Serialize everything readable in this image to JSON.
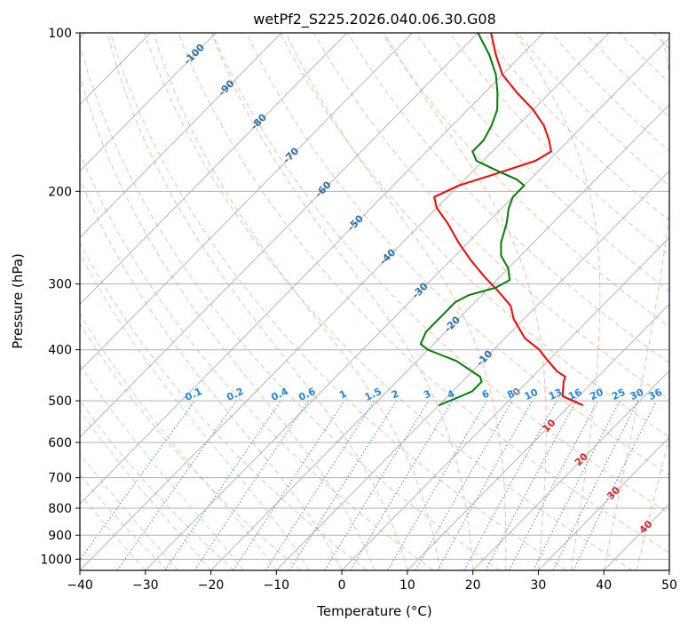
{
  "chart_data": {
    "type": "line",
    "title": "wetPf2_S225.2026.040.06.30.G08",
    "xlabel": "Temperature (°C)",
    "ylabel": "Pressure (hPa)",
    "xlim": [
      -40,
      50
    ],
    "ylim": [
      1050,
      100
    ],
    "x_ticks": [
      -40,
      -30,
      -20,
      -10,
      0,
      10,
      20,
      30,
      40,
      50
    ],
    "x_tick_labels": [
      "−40",
      "−30",
      "−20",
      "−10",
      "0",
      "10",
      "20",
      "30",
      "40",
      "50"
    ],
    "y_ticks": [
      100,
      200,
      300,
      400,
      500,
      600,
      700,
      800,
      900,
      1000
    ],
    "y_tick_labels": [
      "100",
      "200",
      "300",
      "400",
      "500",
      "600",
      "700",
      "800",
      "900",
      "1000"
    ],
    "skew_factor": 35,
    "dry_adiabat_color": "#d9b99b",
    "moist_adiabat_color": "#f4a582",
    "mixing_ratio_color": "#4a90d9",
    "isotherm_color": "#888888",
    "grid_color": "#b0b0b0",
    "isotherm_labels": {
      "values": [
        -100,
        -90,
        -80,
        -70,
        -60,
        -50,
        -40,
        -30,
        -20,
        -10,
        0,
        10,
        20,
        30,
        40
      ],
      "texts": [
        "-100",
        "-90",
        "-80",
        "-70",
        "-60",
        "-50",
        "-40",
        "-30",
        "-20",
        "-10",
        "0",
        "10",
        "20",
        "30",
        "40"
      ],
      "cold_color": "#2b6ea8",
      "zero_color": "#808080",
      "warm_color": "#d62728"
    },
    "mixing_ratio_labels": {
      "values": [
        0.1,
        0.2,
        0.4,
        0.6,
        1,
        1.5,
        2,
        3,
        4,
        6,
        8,
        10,
        13,
        16,
        20,
        25,
        30,
        36
      ],
      "texts": [
        "0.1",
        "0.2",
        "0.4",
        "0.6",
        "1",
        "1.5",
        "2",
        "3",
        "4",
        "6",
        "8",
        "10",
        "13",
        "16",
        "20",
        "25",
        "30",
        "36"
      ],
      "label_pressure": 500,
      "color": "#1e88e5"
    },
    "series": [
      {
        "name": "Temperature",
        "color": "#ff0000",
        "pressure": [
          510,
          490,
          460,
          450,
          440,
          420,
          400,
          380,
          350,
          330,
          310,
          290,
          270,
          250,
          230,
          215,
          205,
          195,
          185,
          175,
          168,
          160,
          150,
          140,
          130,
          120,
          110,
          100
        ],
        "temperature": [
          12,
          7.5,
          5.5,
          5,
          3,
          0,
          -3,
          -7,
          -11.5,
          -14,
          -18,
          -22.5,
          -27,
          -31.5,
          -36,
          -40,
          -42,
          -40,
          -36,
          -32,
          -31,
          -33,
          -36,
          -40,
          -45,
          -50,
          -54,
          -58
        ]
      },
      {
        "name": "Dewpoint",
        "color": "#008000",
        "pressure": [
          510,
          495,
          480,
          460,
          450,
          440,
          420,
          410,
          400,
          390,
          370,
          350,
          340,
          325,
          315,
          305,
          295,
          280,
          265,
          250,
          230,
          215,
          205,
          195,
          190,
          185,
          180,
          175,
          168,
          160,
          150,
          140,
          130,
          120,
          110,
          100
        ],
        "temperature": [
          -10,
          -8.5,
          -7,
          -7,
          -8,
          -10,
          -14,
          -17,
          -20,
          -22,
          -23,
          -23,
          -23,
          -23,
          -22,
          -19,
          -18,
          -20,
          -23,
          -25,
          -27,
          -29,
          -30,
          -30,
          -32,
          -35,
          -38,
          -41,
          -43,
          -43,
          -44,
          -45.5,
          -48,
          -51,
          -55,
          -60
        ]
      }
    ]
  }
}
